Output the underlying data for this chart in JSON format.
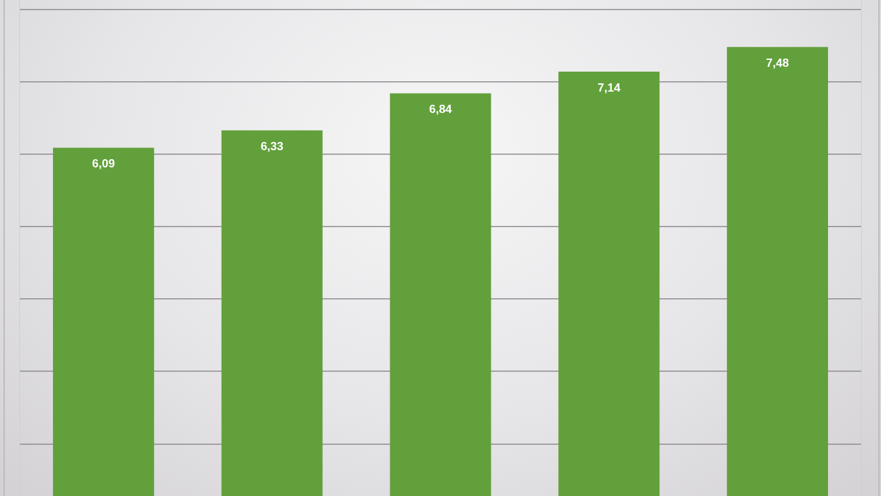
{
  "chart_data": {
    "type": "bar",
    "categories": [
      null,
      null,
      null,
      null,
      null
    ],
    "values": [
      6.09,
      6.33,
      6.84,
      7.14,
      7.48
    ],
    "value_labels": [
      "6,09",
      "6,33",
      "6,84",
      "7,14",
      "7,48"
    ],
    "color": "#62a03b",
    "ylim": [
      1.28,
      8.13
    ],
    "yticks": [
      {
        "value": 2,
        "label": null
      },
      {
        "value": 3,
        "label": null
      },
      {
        "value": 4,
        "label": null
      },
      {
        "value": 5,
        "label": null
      },
      {
        "value": 6,
        "label": null
      },
      {
        "value": 7,
        "label": null
      },
      {
        "value": 8,
        "label": null
      }
    ],
    "grid": "y",
    "tick_labels": false
  }
}
